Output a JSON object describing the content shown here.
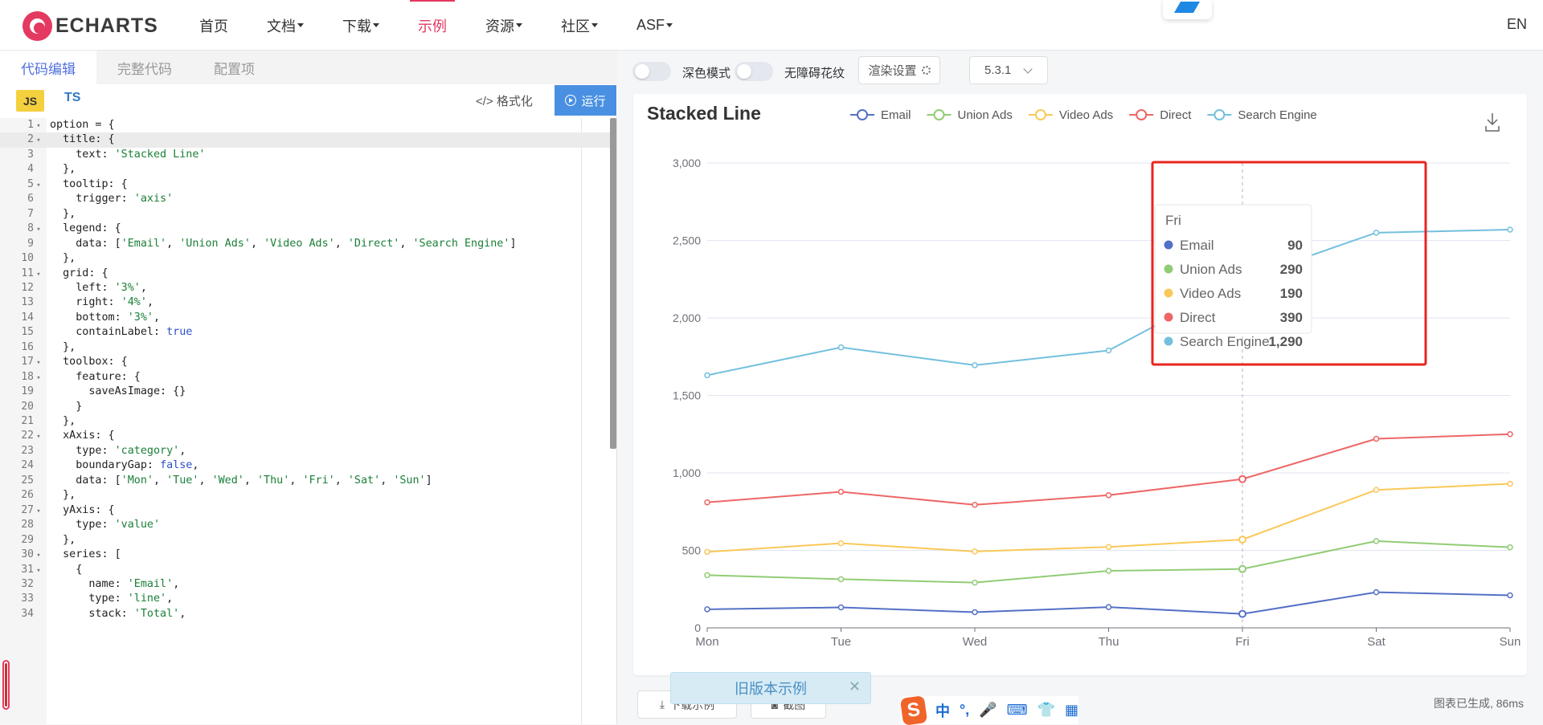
{
  "nav": {
    "logo_text": "ECHARTS",
    "items": [
      {
        "label": "首页",
        "dropdown": false,
        "active": false
      },
      {
        "label": "文档",
        "dropdown": true,
        "active": false
      },
      {
        "label": "下载",
        "dropdown": true,
        "active": false
      },
      {
        "label": "示例",
        "dropdown": false,
        "active": true
      },
      {
        "label": "资源",
        "dropdown": true,
        "active": false
      },
      {
        "label": "社区",
        "dropdown": true,
        "active": false
      },
      {
        "label": "ASF",
        "dropdown": true,
        "active": false
      }
    ],
    "lang_switch": "EN"
  },
  "editor": {
    "tabs": [
      "代码编辑",
      "完整代码",
      "配置项"
    ],
    "active_tab": 0,
    "lang_js": "JS",
    "lang_ts": "TS",
    "format_label": "格式化",
    "run_label": "运行",
    "lines": [
      "option = {",
      "  title: {",
      "    text: 'Stacked Line'",
      "  },",
      "  tooltip: {",
      "    trigger: 'axis'",
      "  },",
      "  legend: {",
      "    data: ['Email', 'Union Ads', 'Video Ads', 'Direct', 'Search Engine']",
      "  },",
      "  grid: {",
      "    left: '3%',",
      "    right: '4%',",
      "    bottom: '3%',",
      "    containLabel: true",
      "  },",
      "  toolbox: {",
      "    feature: {",
      "      saveAsImage: {}",
      "    }",
      "  },",
      "  xAxis: {",
      "    type: 'category',",
      "    boundaryGap: false,",
      "    data: ['Mon', 'Tue', 'Wed', 'Thu', 'Fri', 'Sat', 'Sun']",
      "  },",
      "  yAxis: {",
      "    type: 'value'",
      "  },",
      "  series: [",
      "    {",
      "      name: 'Email',",
      "      type: 'line',",
      "      stack: 'Total',"
    ],
    "foldable_lines": [
      1,
      2,
      5,
      8,
      11,
      17,
      18,
      22,
      27,
      30,
      31
    ],
    "highlight_line": 2
  },
  "toolbar": {
    "dark_mode_label": "深色模式",
    "aria_label": "无障碍花纹",
    "render_settings_label": "渲染设置",
    "version": "5.3.1"
  },
  "bottom": {
    "download_label": "下载示例",
    "screenshot_label": "截图",
    "status": "图表已生成, 86ms",
    "old_example_label": "旧版本示例"
  },
  "ime": {
    "items": [
      "中",
      "°,",
      "🎤",
      "⌨",
      "👕",
      "▦"
    ]
  },
  "chart_data": {
    "type": "line",
    "title": "Stacked Line",
    "categories": [
      "Mon",
      "Tue",
      "Wed",
      "Thu",
      "Fri",
      "Sat",
      "Sun"
    ],
    "ylim": [
      0,
      3000
    ],
    "yticks": [
      0,
      500,
      1000,
      1500,
      2000,
      2500,
      3000
    ],
    "ytick_labels": [
      "0",
      "500",
      "1,000",
      "1,500",
      "2,000",
      "2,500",
      "3,000"
    ],
    "stacked": true,
    "legend_position": "top",
    "series": [
      {
        "name": "Email",
        "color": "#5470c6",
        "values": [
          120,
          132,
          101,
          134,
          90,
          230,
          210
        ]
      },
      {
        "name": "Union Ads",
        "color": "#91cc75",
        "values": [
          220,
          182,
          191,
          234,
          290,
          330,
          310
        ]
      },
      {
        "name": "Video Ads",
        "color": "#fac858",
        "values": [
          150,
          232,
          201,
          154,
          190,
          330,
          410
        ]
      },
      {
        "name": "Direct",
        "color": "#ee6666",
        "values": [
          320,
          332,
          301,
          334,
          390,
          330,
          320
        ]
      },
      {
        "name": "Search Engine",
        "color": "#73c0de",
        "values": [
          820,
          932,
          901,
          934,
          1290,
          1330,
          1320
        ]
      }
    ],
    "tooltip": {
      "category": "Fri",
      "rows": [
        {
          "name": "Email",
          "value": "90",
          "color": "#5470c6"
        },
        {
          "name": "Union Ads",
          "value": "290",
          "color": "#91cc75"
        },
        {
          "name": "Video Ads",
          "value": "190",
          "color": "#fac858"
        },
        {
          "name": "Direct",
          "value": "390",
          "color": "#ee6666"
        },
        {
          "name": "Search Engine",
          "value": "1,290",
          "color": "#73c0de"
        }
      ]
    },
    "highlight_box_color": "#e8251f"
  }
}
